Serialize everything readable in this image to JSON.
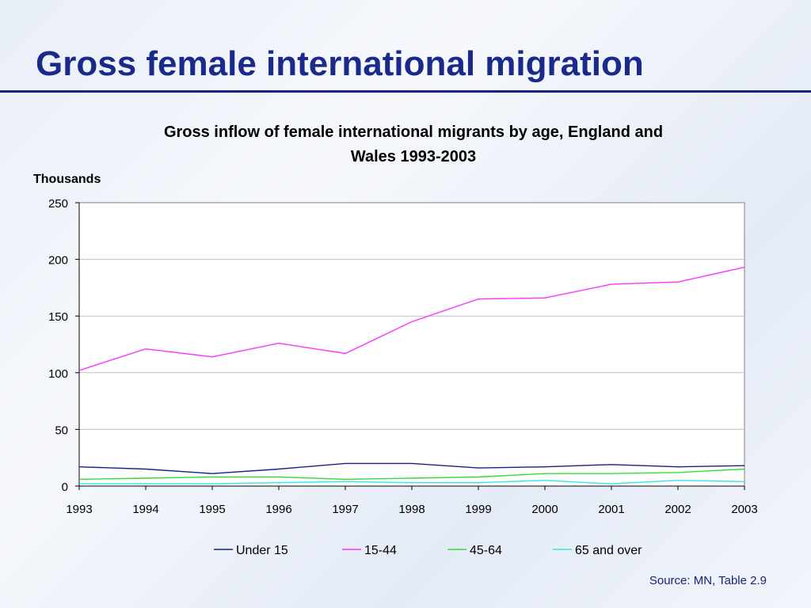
{
  "slide": {
    "title": "Gross female international migration",
    "source": "Source: MN, Table 2.9"
  },
  "colors": {
    "title": "#1a2a8a",
    "rule": "#1a237e",
    "grid": "#c0c0c0"
  },
  "chart_data": {
    "type": "line",
    "title_line1": "Gross inflow of female international migrants by age, England and",
    "title_line2": "Wales 1993-2003",
    "ylabel": "Thousands",
    "xlabel": "",
    "x": [
      "1993",
      "1994",
      "1995",
      "1996",
      "1997",
      "1998",
      "1999",
      "2000",
      "2001",
      "2002",
      "2003"
    ],
    "ylim": [
      0,
      250
    ],
    "yticks": [
      0,
      50,
      100,
      150,
      200,
      250
    ],
    "grid": true,
    "legend_position": "bottom",
    "series": [
      {
        "name": "Under 15",
        "color": "#1a237e",
        "values": [
          17,
          15,
          11,
          15,
          20,
          20,
          16,
          17,
          19,
          17,
          18
        ]
      },
      {
        "name": "15-44",
        "color": "#ff33ff",
        "values": [
          102,
          121,
          114,
          126,
          117,
          145,
          165,
          166,
          178,
          180,
          193
        ]
      },
      {
        "name": "45-64",
        "color": "#33dd33",
        "values": [
          6,
          7,
          8,
          8,
          6,
          7,
          8,
          11,
          11,
          12,
          15
        ]
      },
      {
        "name": "65 and over",
        "color": "#33e5e5",
        "values": [
          2,
          2,
          2,
          3,
          4,
          3,
          3,
          5,
          2,
          5,
          4
        ]
      }
    ]
  }
}
